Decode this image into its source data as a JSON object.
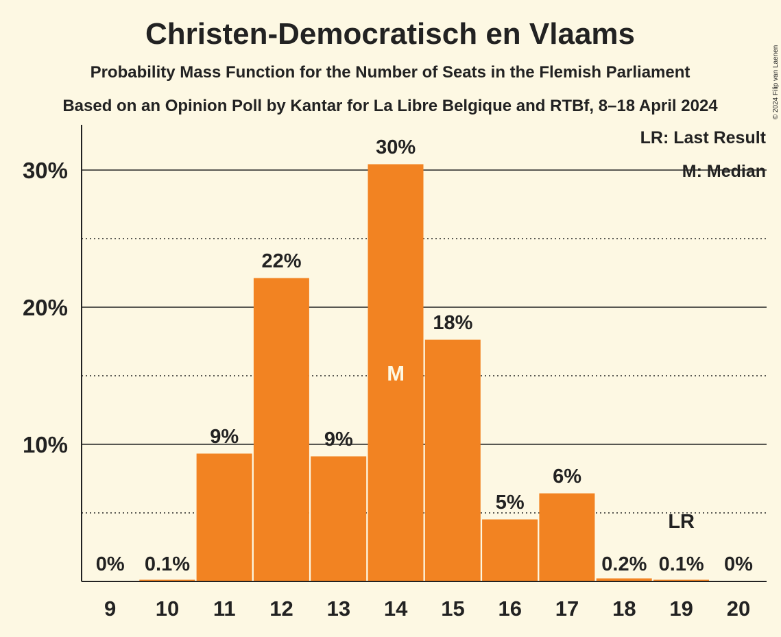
{
  "chart_data": {
    "type": "bar",
    "title": "Christen-Democratisch en Vlaams",
    "subtitle": "Probability Mass Function for the Number of Seats in the Flemish Parliament",
    "subtitle2": "Based on an Opinion Poll by Kantar for La Libre Belgique and RTBf, 8–18 April 2024",
    "credit": "© 2024 Filip van Laenen",
    "categories": [
      "9",
      "10",
      "11",
      "12",
      "13",
      "14",
      "15",
      "16",
      "17",
      "18",
      "19",
      "20"
    ],
    "values": [
      0,
      0.1,
      9.3,
      22.1,
      9.1,
      30.4,
      17.6,
      4.5,
      6.4,
      0.2,
      0.1,
      0
    ],
    "labels": [
      "0%",
      "0.1%",
      "9%",
      "22%",
      "9%",
      "30%",
      "18%",
      "5%",
      "6%",
      "0.2%",
      "0.1%",
      "0%"
    ],
    "ylim": [
      0,
      33
    ],
    "yticks": [
      10,
      20,
      30
    ],
    "ytick_labels": [
      "10%",
      "20%",
      "30%"
    ],
    "minor_gridlines": [
      5,
      15,
      25
    ],
    "median_category": "14",
    "median_marker": "M",
    "last_result_category": "19",
    "last_result_marker": "LR",
    "legend": [
      "LR: Last Result",
      "M: Median"
    ],
    "bar_color": "#f28322",
    "background_color": "#fdf8e3",
    "grid": true
  }
}
